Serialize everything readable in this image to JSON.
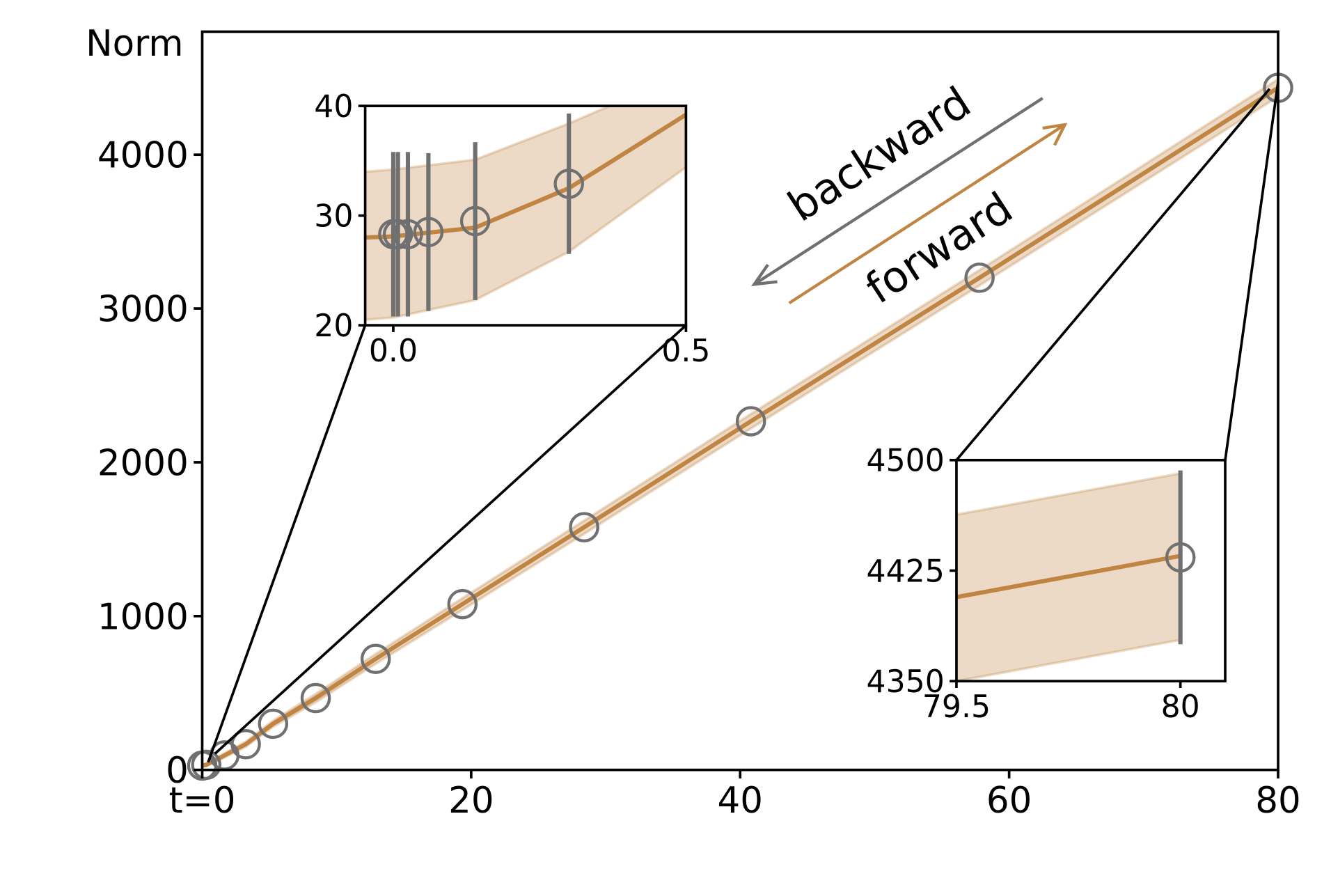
{
  "chart_data": [
    {
      "type": "line",
      "ylabel": "Norm",
      "xlim": [
        0,
        80
      ],
      "ylim": [
        0,
        4800
      ],
      "xticks": [
        {
          "value": 0,
          "label": "t=0"
        },
        20,
        40,
        60,
        80
      ],
      "yticks": [
        0,
        1000,
        2000,
        3000,
        4000
      ],
      "series": [
        {
          "color": "#c08443",
          "x": [
            0,
            0.3,
            1.65,
            3.24,
            5.27,
            8.44,
            12.9,
            19.35,
            28.4,
            40.8,
            57.8,
            80
          ],
          "values": [
            28,
            33,
            94,
            167,
            300,
            467,
            722,
            1078,
            1578,
            2267,
            3200,
            4435
          ],
          "lower": [
            21,
            26,
            80,
            150,
            280,
            440,
            690,
            1040,
            1535,
            2220,
            3150,
            4378
          ],
          "upper": [
            35,
            40,
            108,
            184,
            320,
            494,
            754,
            1116,
            1621,
            2314,
            3250,
            4491
          ]
        }
      ],
      "points": {
        "color": "#707070",
        "x": [
          0,
          0.3,
          1.65,
          3.24,
          5.27,
          8.44,
          12.9,
          19.35,
          28.4,
          40.8,
          57.8,
          80
        ],
        "values": [
          28,
          33,
          94,
          167,
          300,
          467,
          722,
          1078,
          1578,
          2267,
          3200,
          4435
        ]
      },
      "annotations": [
        {
          "text": "backward",
          "color": "#707070"
        },
        {
          "text": "forward",
          "color": "#c08443"
        }
      ]
    },
    {
      "type": "line",
      "xlim": [
        -0.048,
        0.5
      ],
      "ylim": [
        20,
        40
      ],
      "xticks": [
        {
          "value": 0,
          "label": "0.0"
        },
        0.5
      ],
      "yticks": [
        20,
        30,
        40
      ],
      "series": [
        {
          "color": "#c08443",
          "x": [
            -0.048,
            0,
            0.14,
            0.3,
            0.5
          ],
          "values": [
            28,
            28.1,
            28.9,
            32.5,
            39.2
          ],
          "lower": [
            20.5,
            20.7,
            22.3,
            26.7,
            34.4
          ],
          "upper": [
            34,
            34.2,
            35.1,
            38.4,
            43
          ]
        }
      ],
      "points": {
        "color": "#707070",
        "x": [
          0,
          0.008,
          0.025,
          0.06,
          0.14,
          0.3
        ],
        "values": [
          28.3,
          28.3,
          28.3,
          28.5,
          29.5,
          32.9
        ],
        "errors": [
          7.5,
          7.5,
          7.5,
          7.2,
          7.2,
          6.4
        ]
      }
    },
    {
      "type": "line",
      "xlim": [
        79.5,
        80.1
      ],
      "ylim": [
        4350,
        4500
      ],
      "xticks": [
        79.5,
        80
      ],
      "yticks": [
        4350,
        4425,
        4500
      ],
      "series": [
        {
          "color": "#c08443",
          "x": [
            79.5,
            80
          ],
          "values": [
            4407,
            4435
          ],
          "lower": [
            4350,
            4378
          ],
          "upper": [
            4463,
            4491
          ]
        }
      ],
      "points": {
        "color": "#707070",
        "x": [
          80
        ],
        "values": [
          4434
        ],
        "errors": [
          59
        ]
      }
    }
  ]
}
